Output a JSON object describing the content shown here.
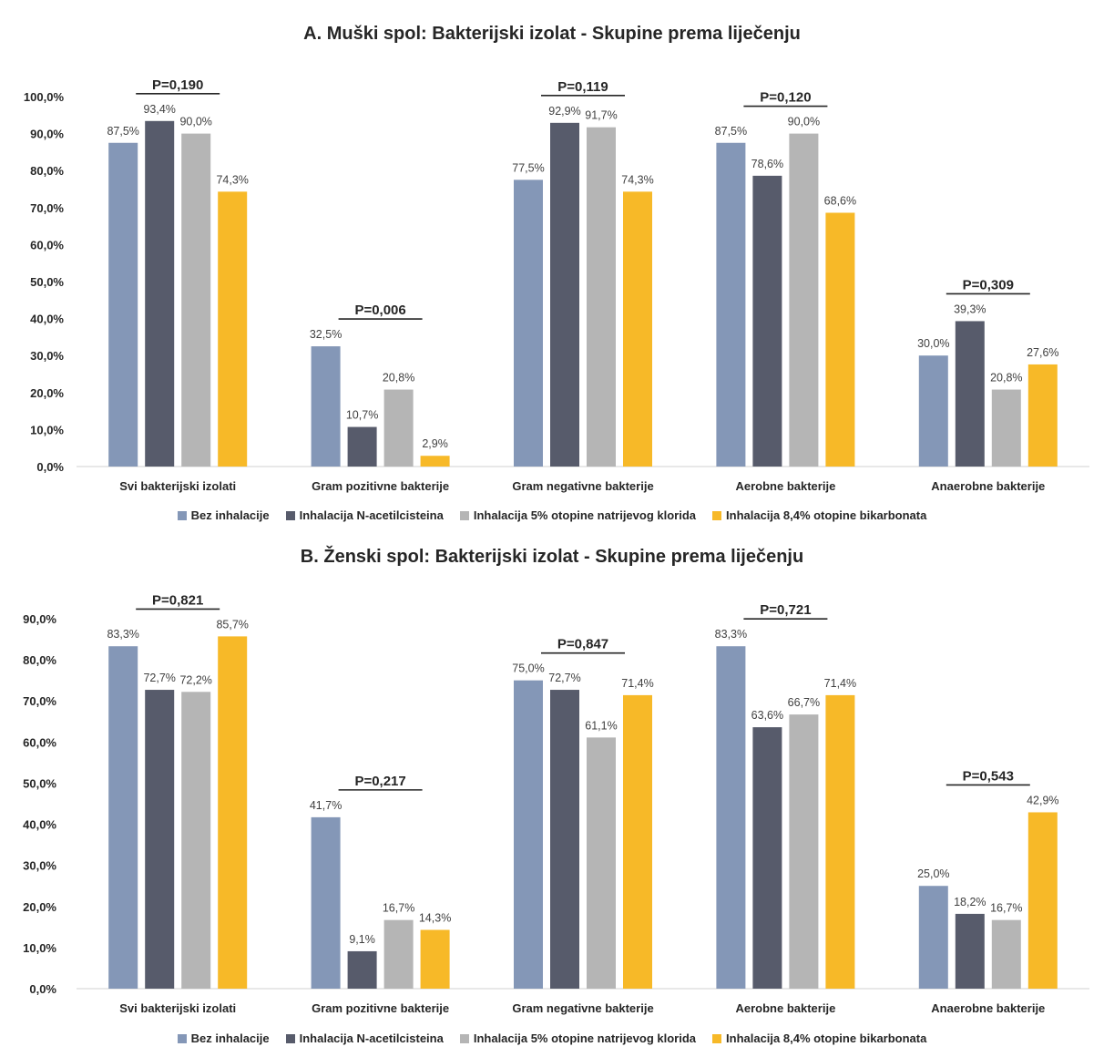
{
  "colors": {
    "Bez inhalacije": "#8497b7",
    "Inhalacija N-acetilcisteina": "#575b6b",
    "Inhalacija 5% otopine natrijevog klorida": "#b5b5b5",
    "Inhalacija 8,4% otopine bikarbonata": "#f7b928"
  },
  "legend": [
    "Bez inhalacije",
    "Inhalacija N-acetilcisteina",
    "Inhalacija 5% otopine natrijevog klorida",
    "Inhalacija 8,4% otopine bikarbonata"
  ],
  "chart_data": [
    {
      "type": "bar",
      "title": "A. Muški spol: Bakterijski izolat - Skupine prema liječenju",
      "categories": [
        "Svi bakterijski izolati",
        "Gram pozitivne bakterije",
        "Gram negativne bakterije",
        "Aerobne bakterije",
        "Anaerobne bakterije"
      ],
      "series": [
        {
          "name": "Bez inhalacije",
          "values": [
            87.5,
            32.5,
            77.5,
            87.5,
            30.0
          ],
          "labels": [
            "87,5%",
            "32,5%",
            "77,5%",
            "87,5%",
            "30,0%"
          ]
        },
        {
          "name": "Inhalacija N-acetilcisteina",
          "values": [
            93.4,
            10.7,
            92.9,
            78.6,
            39.3
          ],
          "labels": [
            "93,4%",
            "10,7%",
            "92,9%",
            "78,6%",
            "39,3%"
          ]
        },
        {
          "name": "Inhalacija 5% otopine natrijevog klorida",
          "values": [
            90.0,
            20.8,
            91.7,
            90.0,
            20.8
          ],
          "labels": [
            "90,0%",
            "20,8%",
            "91,7%",
            "90,0%",
            "20,8%"
          ]
        },
        {
          "name": "Inhalacija 8,4% otopine bikarbonata",
          "values": [
            74.3,
            2.9,
            74.3,
            68.6,
            27.6
          ],
          "labels": [
            "74,3%",
            "2,9%",
            "74,3%",
            "68,6%",
            "27,6%"
          ]
        }
      ],
      "p_values": [
        "P=0,190",
        "P=0,006",
        "P=0,119",
        "P=0,120",
        "P=0,309"
      ],
      "ylim": [
        0,
        100
      ],
      "yticks": [
        "0,0%",
        "10,0%",
        "20,0%",
        "30,0%",
        "40,0%",
        "50,0%",
        "60,0%",
        "70,0%",
        "80,0%",
        "90,0%",
        "100,0%"
      ],
      "grid": false,
      "legend_position": "bottom"
    },
    {
      "type": "bar",
      "title": "B. Ženski spol: Bakterijski izolat - Skupine prema liječenju",
      "categories": [
        "Svi bakterijski izolati",
        "Gram pozitivne bakterije",
        "Gram negativne bakterije",
        "Aerobne bakterije",
        "Anaerobne bakterije"
      ],
      "series": [
        {
          "name": "Bez inhalacije",
          "values": [
            83.3,
            41.7,
            75.0,
            83.3,
            25.0
          ],
          "labels": [
            "83,3%",
            "41,7%",
            "75,0%",
            "83,3%",
            "25,0%"
          ]
        },
        {
          "name": "Inhalacija N-acetilcisteina",
          "values": [
            72.7,
            9.1,
            72.7,
            63.6,
            18.2
          ],
          "labels": [
            "72,7%",
            "9,1%",
            "72,7%",
            "63,6%",
            "18,2%"
          ]
        },
        {
          "name": "Inhalacija 5% otopine natrijevog klorida",
          "values": [
            72.2,
            16.7,
            61.1,
            66.7,
            16.7
          ],
          "labels": [
            "72,2%",
            "16,7%",
            "61,1%",
            "66,7%",
            "16,7%"
          ]
        },
        {
          "name": "Inhalacija 8,4% otopine bikarbonata",
          "values": [
            85.7,
            14.3,
            71.4,
            71.4,
            42.9
          ],
          "labels": [
            "85,7%",
            "14,3%",
            "71,4%",
            "71,4%",
            "42,9%"
          ]
        }
      ],
      "p_values": [
        "P=0,821",
        "P=0,217",
        "P=0,847",
        "P=0,721",
        "P=0,543"
      ],
      "ylim": [
        0,
        90
      ],
      "yticks": [
        "0,0%",
        "10,0%",
        "20,0%",
        "30,0%",
        "40,0%",
        "50,0%",
        "60,0%",
        "70,0%",
        "80,0%",
        "90,0%"
      ],
      "grid": false,
      "legend_position": "bottom"
    }
  ]
}
